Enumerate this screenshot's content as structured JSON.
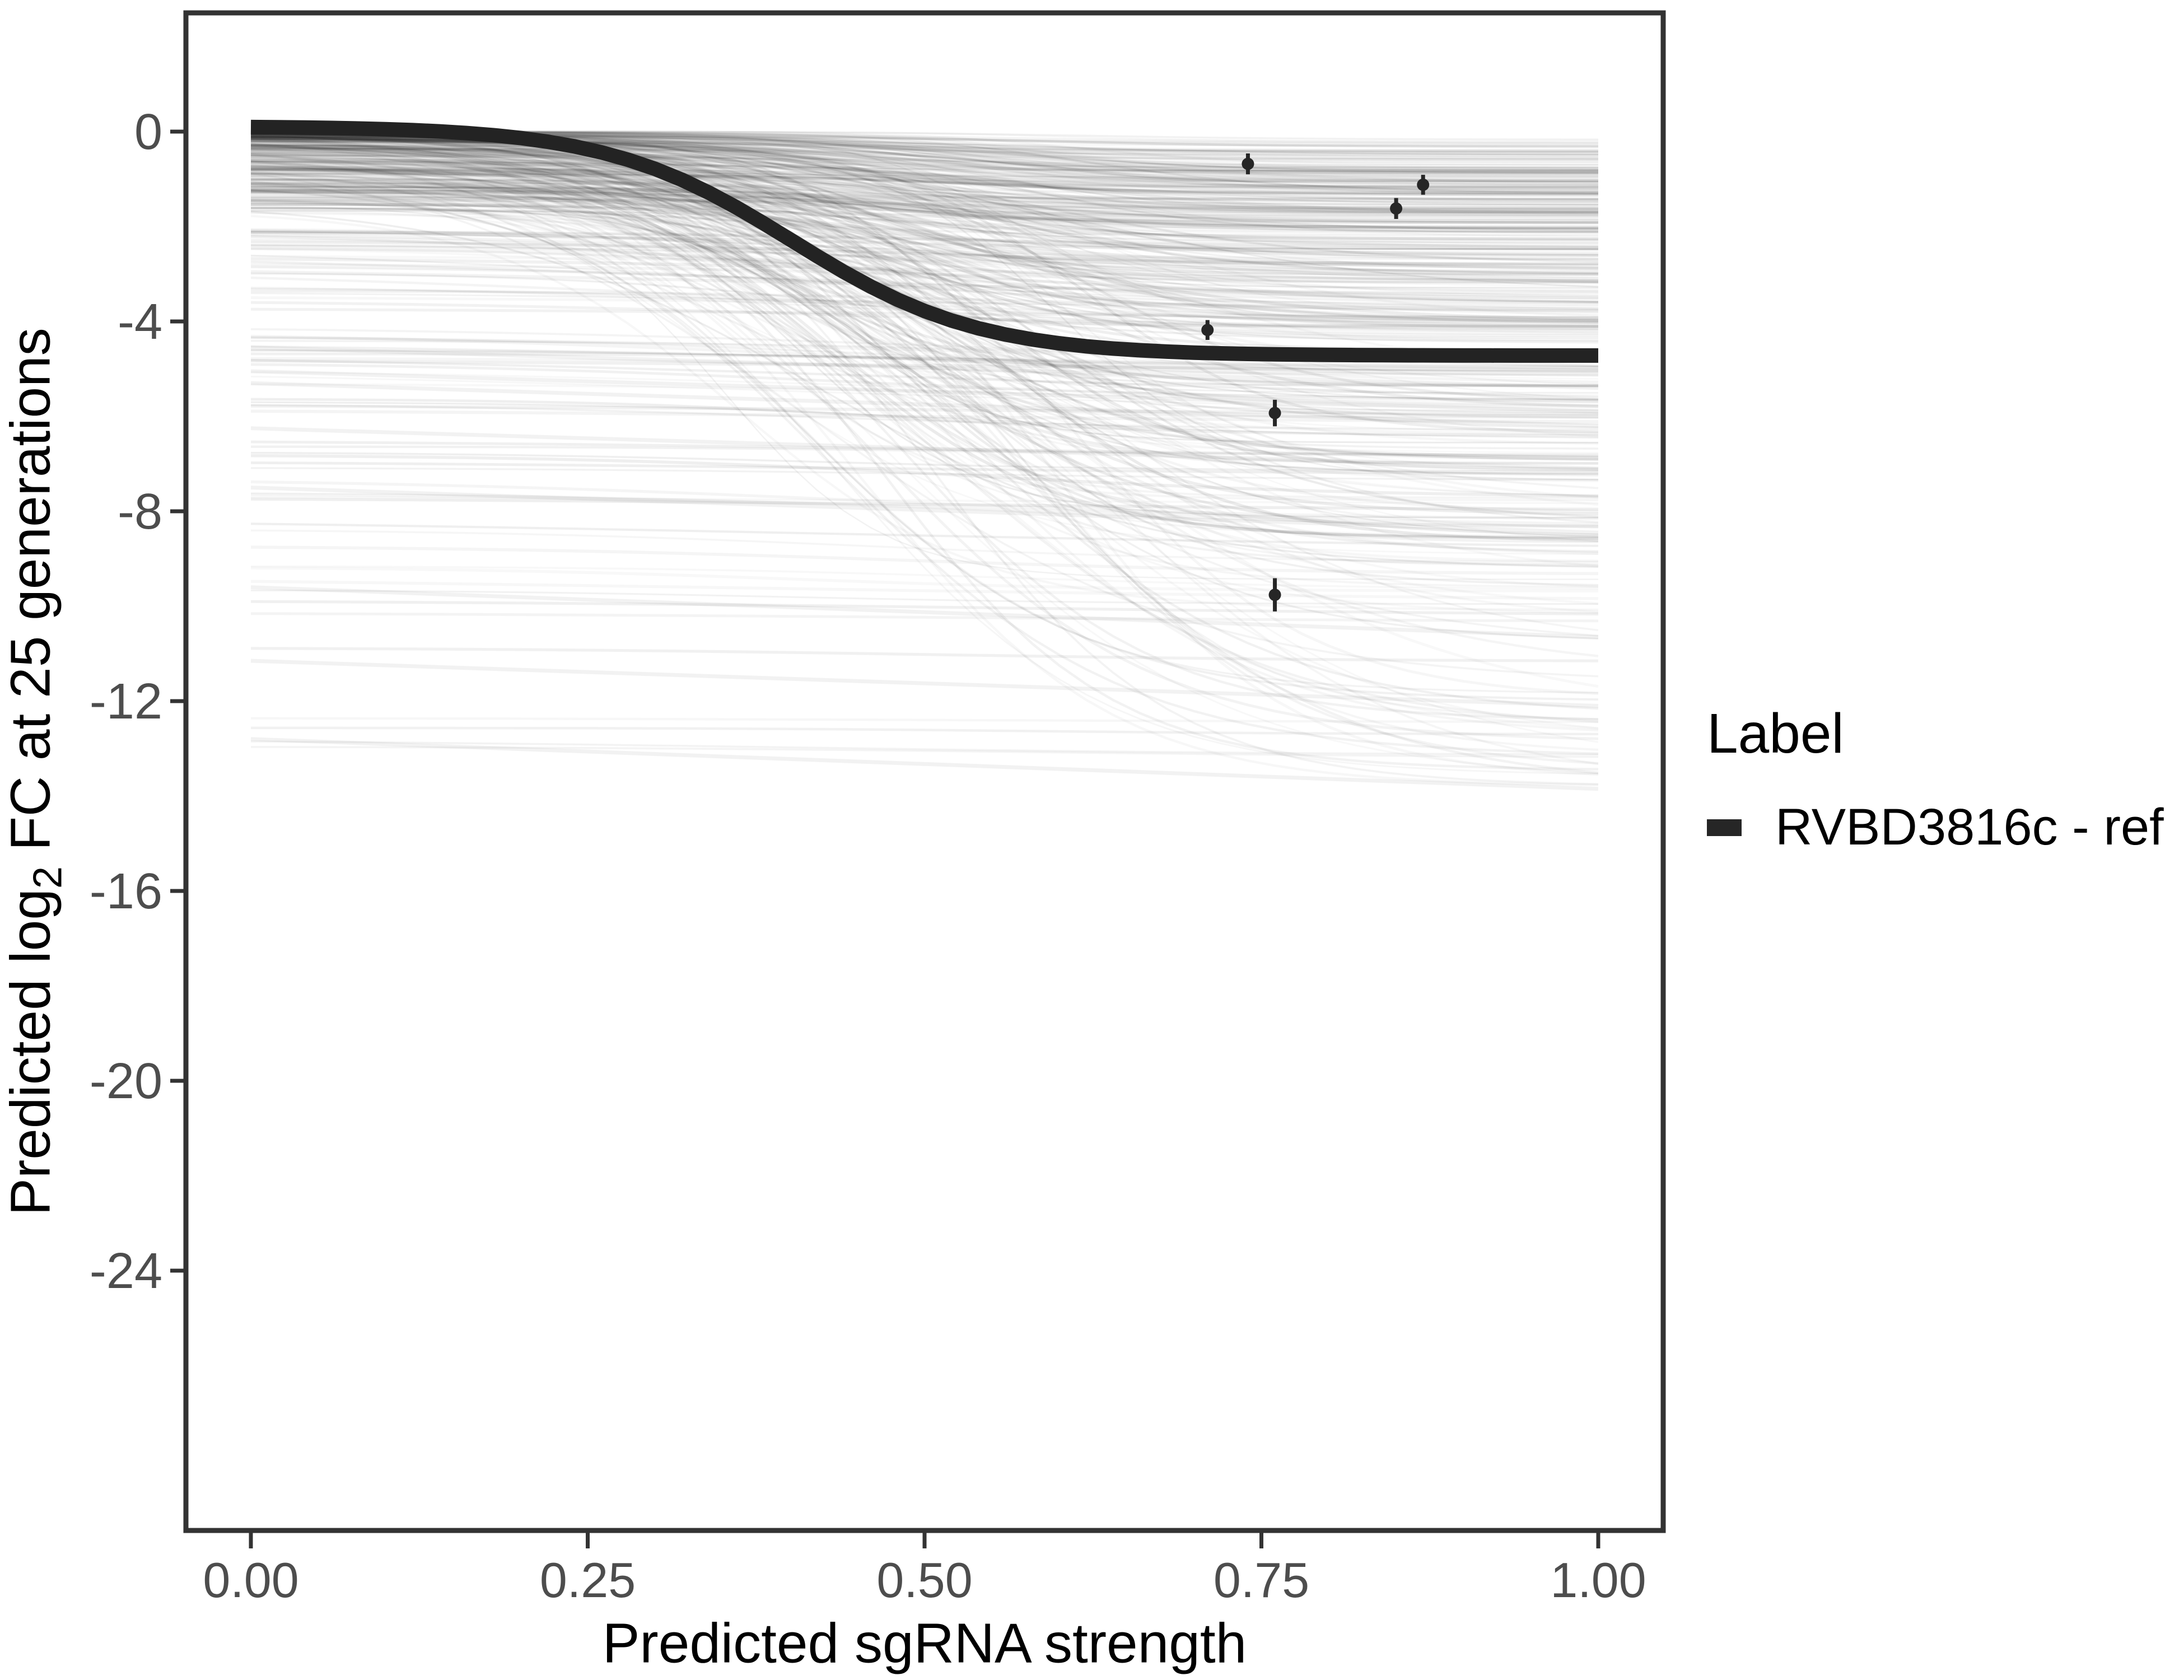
{
  "chart_data": {
    "type": "line",
    "title": "",
    "xlabel": "Predicted sgRNA strength",
    "ylabel": "Predicted log2 FC at 25 generations",
    "ylabel_parts": {
      "prefix": "Predicted  log",
      "sub": "2",
      "suffix": " FC at 25 generations"
    },
    "x_ticks": [
      0,
      0.25,
      0.5,
      0.75,
      1
    ],
    "x_tick_labels": [
      "0.00",
      "0.25",
      "0.50",
      "0.75",
      "1.00"
    ],
    "y_ticks": [
      0,
      -4,
      -8,
      -12,
      -16,
      -20,
      -24
    ],
    "y_tick_labels": [
      "0",
      "-4",
      "-8",
      "-12",
      "-16",
      "-20",
      "-24"
    ],
    "x_data_range": [
      0,
      1
    ],
    "y_panel_range": [
      -29.5,
      2.5
    ],
    "grid": "off",
    "legend": {
      "title": "Label",
      "position": "right",
      "entries": [
        {
          "label": "RVBD3816c - ref",
          "color": "#262626",
          "key": "thick-line"
        }
      ]
    },
    "reference_curve": {
      "name": "RVBD3816c - ref",
      "model": "logistic",
      "y_start": 0.11,
      "y_end": -4.72,
      "x_mid": 0.402,
      "steepness": 14.5,
      "color": "#232323",
      "stroke_width_px": 26
    },
    "pointranges": [
      {
        "x": 0.74,
        "y": -0.68,
        "err": 0.22
      },
      {
        "x": 0.87,
        "y": -1.12,
        "err": 0.21
      },
      {
        "x": 0.85,
        "y": -1.62,
        "err": 0.22
      },
      {
        "x": 0.71,
        "y": -4.18,
        "err": 0.21
      },
      {
        "x": 0.76,
        "y": -5.93,
        "err": 0.28
      },
      {
        "x": 0.76,
        "y": -9.76,
        "err": 0.35
      }
    ],
    "background_curves": {
      "description": "dense ensemble of faint translucent gray logistic prediction curves, x from 0 to 1",
      "seed": 1337,
      "count_main": 300,
      "count_deep_start": 80,
      "count_deep_divers": 45,
      "y0_main_range": [
        0,
        -1.7
      ],
      "y0_tail_range": [
        -2,
        -13
      ],
      "depth_range": [
        0,
        14
      ],
      "x_mid_range": [
        0.34,
        0.62
      ],
      "steepness_range": [
        8,
        17
      ],
      "alpha_range": [
        0.025,
        0.08
      ],
      "width_range": [
        2.5,
        5.5
      ],
      "color": "#000000",
      "low_flat_lines": [
        [
          -4.55,
          -5.4
        ],
        [
          -5.05,
          -5.9
        ],
        [
          -5.3,
          -6.2
        ],
        [
          -6.25,
          -7.1
        ],
        [
          -7.5,
          -8.45
        ],
        [
          -9.6,
          -10.65
        ],
        [
          -11.15,
          -12.1
        ],
        [
          -12.8,
          -13.85
        ]
      ]
    },
    "colors": {
      "panel_border": "#333333",
      "tick_mark": "#333333",
      "tick_label": "#4D4D4D",
      "axis_title": "#000000",
      "background": "#FFFFFF"
    }
  }
}
